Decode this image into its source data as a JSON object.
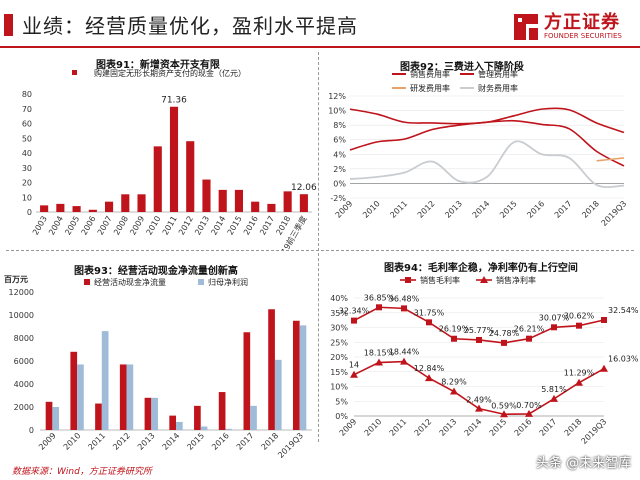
{
  "header": {
    "title": "业绩：经营质量优化，盈利水平提高"
  },
  "logo": {
    "cn": "方正证券",
    "en": "FOUNDER SECURITIES"
  },
  "footer": {
    "source": "数据来源：Wind，方正证券研究所"
  },
  "watermark": "头条 @未来智库",
  "colors": {
    "brand": "#c0141c",
    "red": "#c0141c",
    "lightblue": "#9fbbd8",
    "orange": "#e8a36b",
    "grey": "#c9ccd0"
  },
  "chart_data": [
    {
      "id": "fig91",
      "type": "bar",
      "title": "图表91：新增资本开支有限",
      "legend": [
        "购建固定无形长期资产支付的现金（亿元）"
      ],
      "categories": [
        "2003",
        "2004",
        "2005",
        "2006",
        "2007",
        "2008",
        "2009",
        "2010",
        "2011",
        "2012",
        "2013",
        "2014",
        "2015",
        "2016",
        "2017",
        "2018",
        "2019前三季度"
      ],
      "values": [
        4.5,
        5.5,
        4,
        1.5,
        7,
        12,
        12,
        44.5,
        71.36,
        48,
        22,
        15,
        15,
        7,
        5.5,
        14,
        12.06
      ],
      "labels": {
        "71.36": "71.36",
        "12.06": "12.06"
      },
      "ylim": [
        0,
        80
      ],
      "yticks": [
        "0",
        "10",
        "20",
        "30",
        "40",
        "50",
        "60",
        "70",
        "80"
      ]
    },
    {
      "id": "fig92",
      "type": "line",
      "title": "图表92：三费进入下降阶段",
      "categories": [
        "2009",
        "2010",
        "2011",
        "2012",
        "2013",
        "2014",
        "2015",
        "2016",
        "2017",
        "2018",
        "2019Q3"
      ],
      "series": [
        {
          "name": "销售费用率",
          "values": [
            10.2,
            9.5,
            8.4,
            8.3,
            8.2,
            8.4,
            9.3,
            10.2,
            10.1,
            8.3,
            7.0
          ]
        },
        {
          "name": "管理费用率",
          "values": [
            4.6,
            5.7,
            6.1,
            7.4,
            8.0,
            8.4,
            8.6,
            8.1,
            7.5,
            4.4,
            2.4
          ]
        },
        {
          "name": "研发费用率",
          "values": [
            null,
            null,
            null,
            null,
            null,
            null,
            null,
            null,
            null,
            3.1,
            3.5
          ]
        },
        {
          "name": "财务费用率",
          "values": [
            0.6,
            0.9,
            1.5,
            3.0,
            0.3,
            0.9,
            5.7,
            4.0,
            3.5,
            -0.2,
            -0.3
          ]
        }
      ],
      "ylim": [
        -2,
        12
      ],
      "yticks": [
        "-2%",
        "0%",
        "2%",
        "4%",
        "6%",
        "8%",
        "10%",
        "12%"
      ]
    },
    {
      "id": "fig93",
      "type": "bar",
      "title": "图表93：经营活动现金净流量创新高",
      "ylabel": "百万元",
      "categories": [
        "2009",
        "2010",
        "2011",
        "2012",
        "2013",
        "2014",
        "2015",
        "2016",
        "2017",
        "2018",
        "2019Q3"
      ],
      "series": [
        {
          "name": "经营活动现金净流量",
          "values": [
            2450,
            6800,
            2300,
            5700,
            2800,
            1250,
            2100,
            3300,
            8500,
            10500,
            9500
          ]
        },
        {
          "name": "归母净利润",
          "values": [
            2000,
            5700,
            8600,
            5700,
            2800,
            700,
            300,
            100,
            2100,
            6100,
            9100
          ]
        }
      ],
      "ylim": [
        0,
        12000
      ],
      "yticks": [
        "0",
        "2000",
        "4000",
        "6000",
        "8000",
        "10000",
        "12000"
      ]
    },
    {
      "id": "fig94",
      "type": "line",
      "title": "图表94：毛利率企稳，净利率仍有上行空间",
      "categories": [
        "2009",
        "2010",
        "2011",
        "2012",
        "2013",
        "2014",
        "2015",
        "2016",
        "2017",
        "2018",
        "2019Q3"
      ],
      "series": [
        {
          "name": "销售毛利率",
          "values": [
            32.34,
            36.85,
            36.48,
            31.75,
            26.19,
            25.77,
            24.78,
            26.21,
            30.07,
            30.62,
            32.54
          ],
          "labels": [
            "32.34%",
            "36.85%",
            "36.48%",
            "31.75%",
            "26.19%",
            "25.77%",
            "24.78%",
            "26.21%",
            "30.07%",
            "30.62%",
            "32.54%"
          ]
        },
        {
          "name": "销售净利率",
          "values": [
            14.0,
            18.15,
            18.44,
            12.84,
            8.29,
            2.49,
            0.59,
            0.7,
            5.81,
            11.29,
            16.03
          ],
          "labels": [
            "14",
            "18.15%",
            "18.44%",
            "12.84%",
            "8.29%",
            "2.49%",
            "0.59%",
            "0.70%",
            "5.81%",
            "11.29%",
            "16.03%"
          ]
        }
      ],
      "ylim": [
        0,
        40
      ],
      "yticks": [
        "0%",
        "5%",
        "10%",
        "15%",
        "20%",
        "25%",
        "30%",
        "35%",
        "40%"
      ]
    }
  ]
}
